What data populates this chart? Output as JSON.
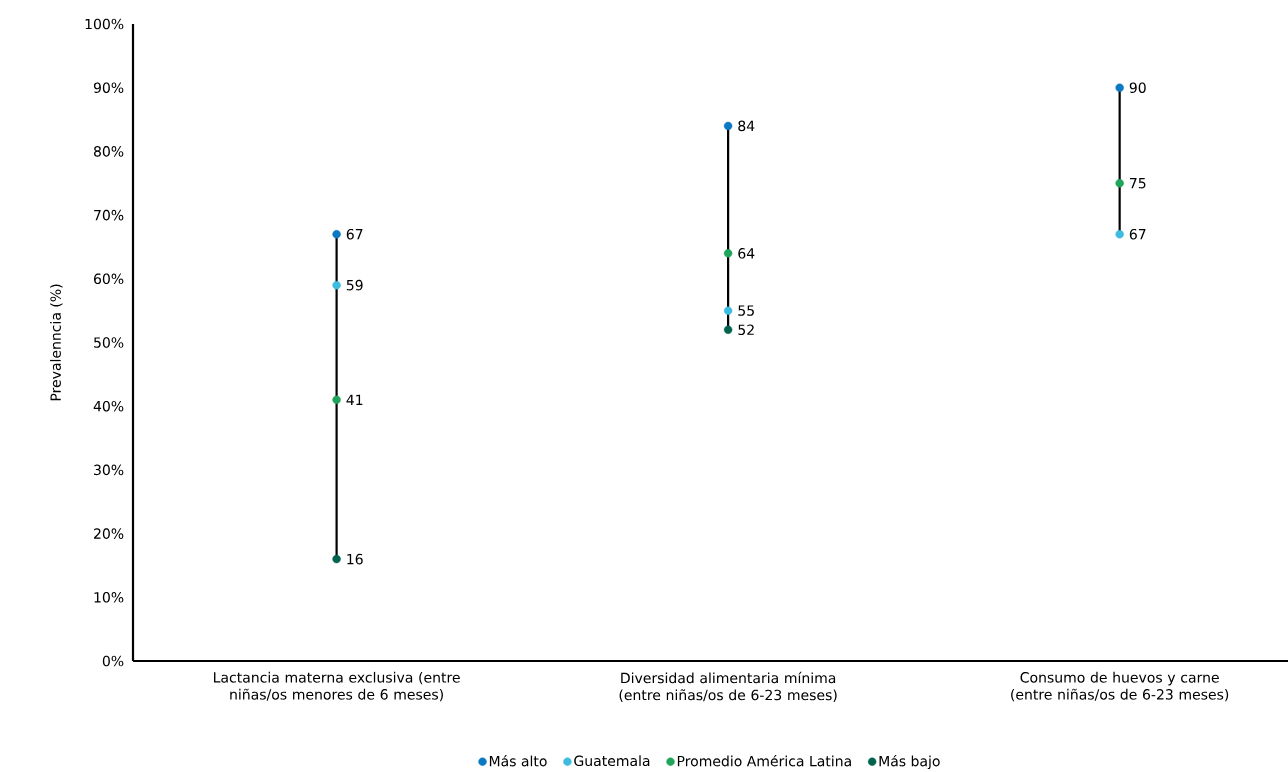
{
  "chart_data": {
    "type": "scatter",
    "ylabel": "Prevalenncia (%)",
    "categories": [
      "Lactancia materna exclusiva (entre niñas/os menores de 6 meses)",
      "Diversidad alimentaria mínima (entre niñas/os de 6-23 meses)",
      "Consumo de huevos y carne (entre niñas/os de 6-23 meses)"
    ],
    "series": [
      {
        "name": "Más alto",
        "color": "#0a78c2",
        "values": [
          67,
          84,
          90
        ]
      },
      {
        "name": "Guatemala",
        "color": "#3dbbe0",
        "values": [
          59,
          55,
          67
        ]
      },
      {
        "name": "Promedio América Latina",
        "color": "#1fa45a",
        "values": [
          41,
          64,
          75
        ]
      },
      {
        "name": "Más bajo",
        "color": "#02644f",
        "values": [
          16,
          52,
          null
        ]
      }
    ],
    "ylim": [
      0,
      100
    ],
    "yticks": [
      {
        "value": 0,
        "label": "0%"
      },
      {
        "value": 10,
        "label": "10%"
      },
      {
        "value": 20,
        "label": "20%"
      },
      {
        "value": 30,
        "label": "30%"
      },
      {
        "value": 40,
        "label": "40%"
      },
      {
        "value": 50,
        "label": "50%"
      },
      {
        "value": 60,
        "label": "60%"
      },
      {
        "value": 70,
        "label": "70%"
      },
      {
        "value": 80,
        "label": "80%"
      },
      {
        "value": 90,
        "label": "90%"
      },
      {
        "value": 100,
        "label": "100%"
      }
    ],
    "data_labels": true,
    "legend": "bottom",
    "grid": false
  }
}
